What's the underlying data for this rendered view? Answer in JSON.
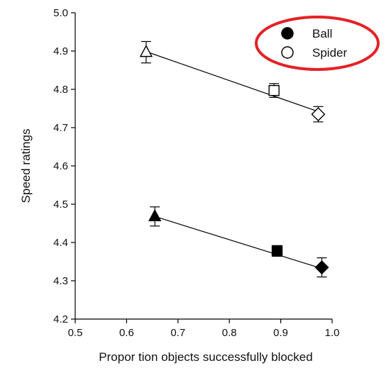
{
  "chart_data": {
    "type": "scatter",
    "title": "",
    "xlabel": "Propor tion objects successfully blocked",
    "ylabel": "Speed ratings",
    "xlim": [
      0.5,
      1.0
    ],
    "ylim": [
      4.2,
      5.0
    ],
    "xticks": [
      "0.5",
      "0.6",
      "0.7",
      "0.8",
      "0.9",
      "1.0"
    ],
    "yticks": [
      "4.2",
      "4.3",
      "4.4",
      "4.5",
      "4.6",
      "4.7",
      "4.8",
      "4.9",
      "5.0"
    ],
    "grid": false,
    "legend": {
      "placement": "top-right",
      "circled": true,
      "circle_color": "#e32227",
      "entries": [
        {
          "label": "Ball",
          "marker": "filled-circle"
        },
        {
          "label": "Spider",
          "marker": "open-circle"
        }
      ]
    },
    "series": [
      {
        "name": "Ball",
        "fill": "#000000",
        "points": [
          {
            "x": 0.655,
            "y": 4.468,
            "err": 0.025,
            "marker": "triangle"
          },
          {
            "x": 0.893,
            "y": 4.378,
            "err": 0.014,
            "marker": "square"
          },
          {
            "x": 0.98,
            "y": 4.335,
            "err": 0.025,
            "marker": "diamond"
          }
        ],
        "fit": {
          "x0": 0.65,
          "y0": 4.47,
          "x1": 0.98,
          "y1": 4.332
        }
      },
      {
        "name": "Spider",
        "fill": "#ffffff",
        "points": [
          {
            "x": 0.638,
            "y": 4.897,
            "err": 0.028,
            "marker": "triangle"
          },
          {
            "x": 0.887,
            "y": 4.797,
            "err": 0.018,
            "marker": "square"
          },
          {
            "x": 0.973,
            "y": 4.735,
            "err": 0.02,
            "marker": "diamond"
          }
        ],
        "fit": {
          "x0": 0.635,
          "y0": 4.9,
          "x1": 0.973,
          "y1": 4.742
        }
      }
    ]
  }
}
